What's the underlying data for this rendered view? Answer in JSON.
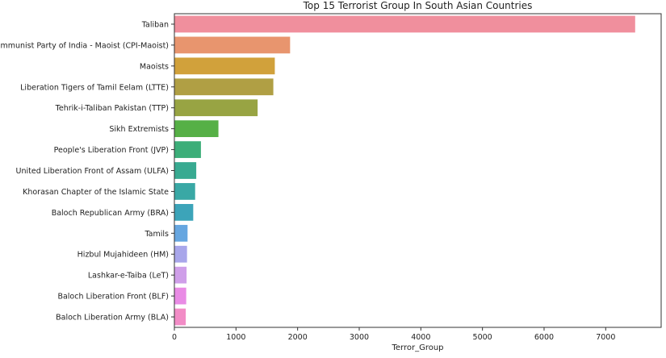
{
  "chart_data": {
    "type": "bar",
    "orientation": "horizontal",
    "title": "Top 15 Terrorist Group In South Asian Countries",
    "xlabel": "Terror_Group",
    "ylabel": "",
    "xlim": [
      0,
      7900
    ],
    "xticks": [
      0,
      1000,
      2000,
      3000,
      4000,
      5000,
      6000,
      7000
    ],
    "grid": false,
    "categories": [
      "Taliban",
      "Communist Party of India - Maoist (CPI-Maoist)",
      "Maoists",
      "Liberation Tigers of Tamil Eelam (LTTE)",
      "Tehrik-i-Taliban Pakistan (TTP)",
      "Sikh Extremists",
      "People's Liberation Front (JVP)",
      "United Liberation Front of Assam (ULFA)",
      "Khorasan Chapter of the Islamic State",
      "Baloch Republican Army (BRA)",
      "Tamils",
      "Hizbul Mujahideen (HM)",
      "Lashkar-e-Taiba (LeT)",
      "Baloch Liberation Front (BLF)",
      "Baloch Liberation Army (BLA)"
    ],
    "values": [
      7478,
      1878,
      1630,
      1606,
      1351,
      715,
      431,
      355,
      337,
      306,
      214,
      205,
      198,
      192,
      185
    ],
    "colors": [
      "#f08f9d",
      "#e8956e",
      "#d1a13b",
      "#b09f44",
      "#98a443",
      "#56b046",
      "#3cae79",
      "#38aa91",
      "#39a8a5",
      "#3ca4b9",
      "#66a6e0",
      "#a8a6ea",
      "#cf9fe9",
      "#e98be5",
      "#f28cc6"
    ]
  }
}
